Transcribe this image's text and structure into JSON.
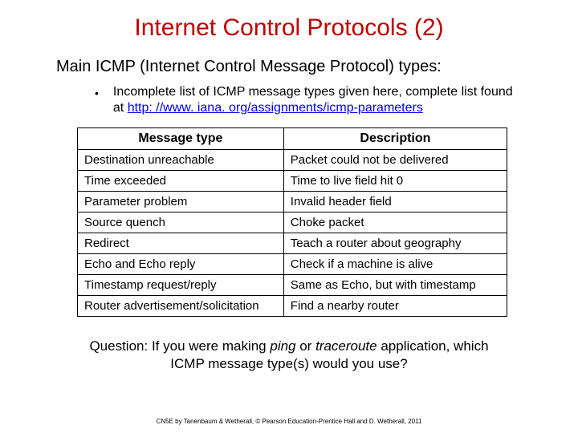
{
  "title": "Internet Control Protocols (2)",
  "subtitle": "Main ICMP (Internet Control Message Protocol) types:",
  "bullet": {
    "text_before": "Incomplete list of ICMP message types given here, complete list found at ",
    "link_text": "http: //www. iana. org/assignments/icmp-parameters"
  },
  "table": {
    "headers": [
      "Message type",
      "Description"
    ],
    "rows": [
      [
        "Destination unreachable",
        "Packet could not be delivered"
      ],
      [
        "Time exceeded",
        "Time to live field hit 0"
      ],
      [
        "Parameter problem",
        "Invalid header field"
      ],
      [
        "Source quench",
        "Choke packet"
      ],
      [
        "Redirect",
        "Teach a router about geography"
      ],
      [
        "Echo and Echo reply",
        "Check if a machine is alive"
      ],
      [
        "Timestamp request/reply",
        "Same as Echo, but with timestamp"
      ],
      [
        "Router advertisement/solicitation",
        "Find a nearby router"
      ]
    ]
  },
  "question": {
    "label": "Question:",
    "before": "If you were making ",
    "em1": "ping",
    "mid": " or ",
    "em2": "traceroute",
    "after": " application, which ICMP message type(s) would you use?"
  },
  "footer": "CN5E by Tanenbaum & Wetherall, © Pearson Education-Prentice Hall and D. Wetherall, 2011"
}
